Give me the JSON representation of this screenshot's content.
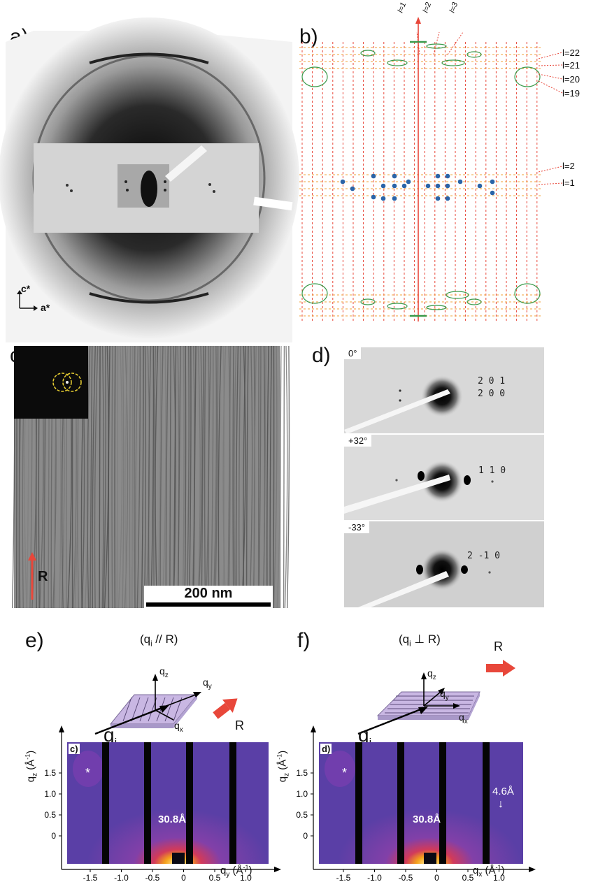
{
  "panels": {
    "a": {
      "label": "a)",
      "axes": {
        "vertical": "c*",
        "horizontal": "a*"
      }
    },
    "b": {
      "label": "b)",
      "top_labels": [
        "l=1",
        "l=2",
        "l=3"
      ],
      "right_labels_top": [
        "l=22",
        "l=21",
        "l=20",
        "l=19"
      ],
      "right_labels_mid": [
        "l=2",
        "l=1"
      ]
    },
    "c": {
      "label": "c)",
      "scale_bar": "200 nm",
      "direction": "R"
    },
    "d": {
      "label": "d)",
      "frames": [
        {
          "angle": "0°",
          "reflections": [
            "2 0 1",
            "2 0 0"
          ]
        },
        {
          "angle": "+32°",
          "reflections": [
            "1 1 0"
          ]
        },
        {
          "angle": "-33°",
          "reflections": [
            "2 -1 0"
          ]
        }
      ]
    },
    "e": {
      "label": "e)",
      "condition_pre": "(q",
      "condition_sub": "i",
      "condition_post": " // R)",
      "schematic": {
        "qz": "q",
        "qz_sub": "z",
        "qy": "q",
        "qy_sub": "y",
        "qx": "q",
        "qx_sub": "x",
        "qi": "q",
        "qi_sub": "i",
        "R": "R"
      },
      "inset_label": "c)",
      "star": "*",
      "peak_label": "30.8Å",
      "y_axis_label": "q",
      "y_axis_sub": "z",
      "y_axis_unit": " (Å",
      "y_axis_unit_sup": "-1",
      "y_axis_close": ")",
      "x_axis_label": "q",
      "x_axis_sub": "y",
      "x_axis_unit": " (Å",
      "x_axis_unit_sup": "-1",
      "x_axis_close": ")",
      "y_ticks": [
        "1.5",
        "1.0",
        "0.5",
        "0"
      ],
      "x_ticks": [
        "-1.5",
        "-1.0",
        "-0.5",
        "0",
        "0.5",
        "1.0"
      ]
    },
    "f": {
      "label": "f)",
      "condition_pre": "(q",
      "condition_sub": "i",
      "condition_post": " ⊥ R)",
      "schematic": {
        "qz": "q",
        "qz_sub": "z",
        "qy": "q",
        "qy_sub": "y",
        "qx": "q",
        "qx_sub": "x",
        "qi": "q",
        "qi_sub": "i",
        "R": "R"
      },
      "inset_label": "d)",
      "star": "*",
      "peak_label": "30.8Å",
      "extra_label": "4.6Å",
      "extra_arrow": "↓",
      "y_axis_label": "q",
      "y_axis_sub": "z",
      "y_axis_unit": " (Å",
      "y_axis_unit_sup": "-1",
      "y_axis_close": ")",
      "x_axis_label": "q",
      "x_axis_sub": "x",
      "x_axis_unit": " (Å",
      "x_axis_unit_sup": "-1",
      "x_axis_close": ")",
      "y_ticks": [
        "1.5",
        "1.0",
        "0.5",
        "0"
      ],
      "x_ticks": [
        "-1.5",
        "-1.0",
        "-0.5",
        "0",
        "0.5",
        "1.0"
      ]
    }
  },
  "colors": {
    "red_guide": "#e8473a",
    "orange_guide": "#f0a23a",
    "green_ellipse": "#3a9a4a",
    "blue_spot": "#2a64a8",
    "map_bg": "#5a3fa6",
    "arrow_red": "#e8473a",
    "slab": "#c9b7e3"
  }
}
